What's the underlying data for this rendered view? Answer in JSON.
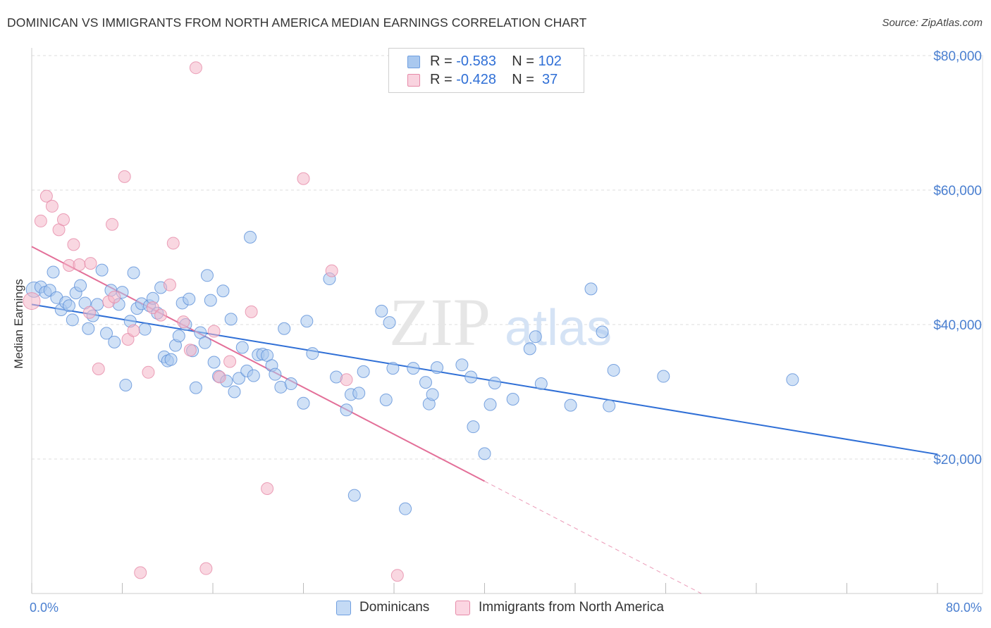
{
  "header": {
    "title": "DOMINICAN VS IMMIGRANTS FROM NORTH AMERICA MEDIAN EARNINGS CORRELATION CHART",
    "source": "Source: ZipAtlas.com"
  },
  "watermark": {
    "part1": "ZIP",
    "part2": "atlas"
  },
  "legend": {
    "rows": [
      {
        "r_label": "R =",
        "r_value": "-0.583",
        "n_label": "N =",
        "n_value": "102",
        "color": "#a9c8ef"
      },
      {
        "r_label": "R =",
        "r_value": "-0.428",
        "n_label": "N =",
        "n_value": " 37",
        "color": "#f4b6c8"
      }
    ]
  },
  "bottom_legend": [
    {
      "label": "Dominicans",
      "color": "#a9c8ef",
      "stroke": "#6f9fe0"
    },
    {
      "label": "Immigrants from North America",
      "color": "#f4b6c8",
      "stroke": "#e68aa8"
    }
  ],
  "colors": {
    "blue_fill": "#a9c8ef",
    "blue_stroke": "#5b8fd8",
    "blue_line": "#2f6fd6",
    "pink_fill": "#f4b6c8",
    "pink_stroke": "#e68aa8",
    "pink_line": "#e36f98",
    "axis_text": "#4a7fd0",
    "grid": "#dddddd"
  },
  "chart_data": {
    "type": "scatter",
    "title": "DOMINICAN VS IMMIGRANTS FROM NORTH AMERICA MEDIAN EARNINGS CORRELATION CHART",
    "ylabel": "Median Earnings",
    "xlabel": "",
    "xlim": [
      0,
      80
    ],
    "ylim": [
      0,
      80000
    ],
    "x_tick_labels": [
      {
        "value": 0,
        "label": "0.0%"
      },
      {
        "value": 80,
        "label": "80.0%"
      }
    ],
    "x_minor_ticks": [
      0,
      8,
      16,
      24,
      32,
      40,
      48,
      56,
      64,
      72,
      80
    ],
    "y_ticks": [
      {
        "value": 20000,
        "label": "$20,000"
      },
      {
        "value": 40000,
        "label": "$40,000"
      },
      {
        "value": 60000,
        "label": "$60,000"
      },
      {
        "value": 80000,
        "label": "$80,000"
      }
    ],
    "grid": true,
    "legend_position": "top-center",
    "series": [
      {
        "name": "Dominicans",
        "color": "#a9c8ef",
        "trend": {
          "x0": 0,
          "y0": 43000,
          "x1": 80,
          "y1": 20700
        },
        "points": [
          [
            0.2,
            45200
          ],
          [
            0.8,
            45600
          ],
          [
            1.2,
            44800
          ],
          [
            1.6,
            45100
          ],
          [
            1.9,
            47800
          ],
          [
            2.2,
            44000
          ],
          [
            2.6,
            42200
          ],
          [
            3.0,
            43300
          ],
          [
            3.3,
            42800
          ],
          [
            3.6,
            40700
          ],
          [
            3.9,
            44700
          ],
          [
            4.3,
            45800
          ],
          [
            4.7,
            43200
          ],
          [
            5.0,
            39400
          ],
          [
            5.4,
            41300
          ],
          [
            5.8,
            43000
          ],
          [
            6.2,
            48100
          ],
          [
            6.6,
            38700
          ],
          [
            7.0,
            45100
          ],
          [
            7.3,
            37400
          ],
          [
            7.7,
            43000
          ],
          [
            8.0,
            44800
          ],
          [
            8.3,
            31000
          ],
          [
            8.7,
            40500
          ],
          [
            9.0,
            47700
          ],
          [
            9.3,
            42400
          ],
          [
            9.7,
            43100
          ],
          [
            10.0,
            39300
          ],
          [
            10.4,
            42800
          ],
          [
            10.7,
            43900
          ],
          [
            11.1,
            41700
          ],
          [
            11.4,
            45500
          ],
          [
            11.7,
            35200
          ],
          [
            12.0,
            34600
          ],
          [
            12.3,
            34800
          ],
          [
            12.7,
            36900
          ],
          [
            13.0,
            38300
          ],
          [
            13.3,
            43200
          ],
          [
            13.6,
            40000
          ],
          [
            13.9,
            43800
          ],
          [
            14.2,
            36100
          ],
          [
            14.5,
            30600
          ],
          [
            14.9,
            38800
          ],
          [
            15.3,
            37300
          ],
          [
            15.5,
            47300
          ],
          [
            15.8,
            43600
          ],
          [
            16.1,
            34400
          ],
          [
            16.5,
            32300
          ],
          [
            16.9,
            45000
          ],
          [
            17.2,
            31600
          ],
          [
            17.6,
            40800
          ],
          [
            17.9,
            30000
          ],
          [
            18.3,
            32000
          ],
          [
            18.6,
            36600
          ],
          [
            19.0,
            33100
          ],
          [
            19.3,
            53000
          ],
          [
            19.6,
            32400
          ],
          [
            20.0,
            35500
          ],
          [
            20.4,
            35600
          ],
          [
            20.8,
            35400
          ],
          [
            21.2,
            33900
          ],
          [
            21.5,
            32600
          ],
          [
            22.0,
            30700
          ],
          [
            22.3,
            39400
          ],
          [
            22.9,
            31200
          ],
          [
            24.0,
            28300
          ],
          [
            24.3,
            40500
          ],
          [
            24.8,
            35700
          ],
          [
            26.3,
            46800
          ],
          [
            26.9,
            32200
          ],
          [
            27.8,
            27300
          ],
          [
            28.2,
            29600
          ],
          [
            28.9,
            29800
          ],
          [
            29.3,
            33000
          ],
          [
            30.9,
            42000
          ],
          [
            31.3,
            28800
          ],
          [
            31.6,
            40300
          ],
          [
            31.9,
            33500
          ],
          [
            33.0,
            12600
          ],
          [
            33.7,
            33500
          ],
          [
            34.8,
            31400
          ],
          [
            35.1,
            28200
          ],
          [
            35.4,
            29600
          ],
          [
            35.8,
            33600
          ],
          [
            38.0,
            34000
          ],
          [
            38.8,
            32200
          ],
          [
            39.0,
            24800
          ],
          [
            40.0,
            20800
          ],
          [
            40.5,
            28100
          ],
          [
            40.9,
            31300
          ],
          [
            42.5,
            28900
          ],
          [
            44.0,
            36400
          ],
          [
            44.5,
            38200
          ],
          [
            45.0,
            31200
          ],
          [
            47.6,
            28000
          ],
          [
            49.4,
            45300
          ],
          [
            50.4,
            38900
          ],
          [
            51.0,
            27900
          ],
          [
            51.4,
            33200
          ],
          [
            55.8,
            32300
          ],
          [
            67.2,
            31800
          ],
          [
            28.5,
            14600
          ]
        ]
      },
      {
        "name": "Immigrants from North America",
        "color": "#f4b6c8",
        "trend": {
          "x0": 0,
          "y0": 51600,
          "x1": 40,
          "y1": 16700,
          "dash_to_x": 80
        },
        "points": [
          [
            0.0,
            43500
          ],
          [
            0.8,
            55400
          ],
          [
            1.3,
            59100
          ],
          [
            1.8,
            57600
          ],
          [
            2.4,
            54100
          ],
          [
            2.8,
            55600
          ],
          [
            3.3,
            48800
          ],
          [
            3.7,
            51900
          ],
          [
            4.2,
            48900
          ],
          [
            5.1,
            41800
          ],
          [
            5.2,
            49100
          ],
          [
            5.9,
            33400
          ],
          [
            6.8,
            43400
          ],
          [
            7.1,
            54900
          ],
          [
            7.3,
            44100
          ],
          [
            8.2,
            62000
          ],
          [
            8.5,
            37800
          ],
          [
            9.0,
            39100
          ],
          [
            9.6,
            3100
          ],
          [
            10.3,
            32900
          ],
          [
            10.7,
            42500
          ],
          [
            11.4,
            41400
          ],
          [
            12.2,
            45900
          ],
          [
            12.5,
            52100
          ],
          [
            13.4,
            40400
          ],
          [
            14.0,
            36200
          ],
          [
            14.5,
            78200
          ],
          [
            15.4,
            3700
          ],
          [
            16.1,
            39000
          ],
          [
            16.6,
            32200
          ],
          [
            17.5,
            34500
          ],
          [
            19.4,
            41900
          ],
          [
            20.8,
            15600
          ],
          [
            24.0,
            61700
          ],
          [
            26.5,
            48000
          ],
          [
            27.8,
            31800
          ],
          [
            32.3,
            2700
          ]
        ]
      }
    ]
  }
}
